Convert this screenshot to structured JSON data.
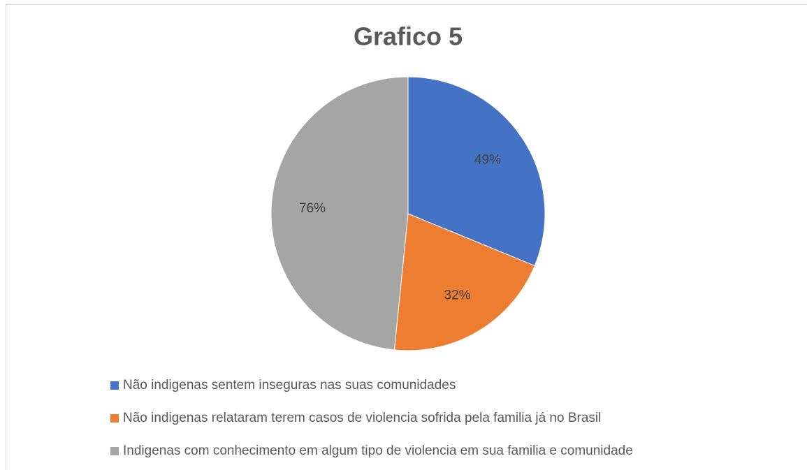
{
  "chart_data": {
    "type": "pie",
    "title": "Grafico 5",
    "categories": [
      "Não indigenas sentem inseguras nas suas comunidades",
      "Não indigenas relataram terem casos de violencia sofrida pela familia já no Brasil",
      "Indigenas com conhecimento em algum tipo de violencia em sua familia e comunidade"
    ],
    "values": [
      49,
      32,
      76
    ],
    "value_labels": [
      "49%",
      "32%",
      "76%"
    ],
    "colors": [
      "#4472c4",
      "#ed7d31",
      "#a5a5a5"
    ],
    "legend": "bottom"
  }
}
